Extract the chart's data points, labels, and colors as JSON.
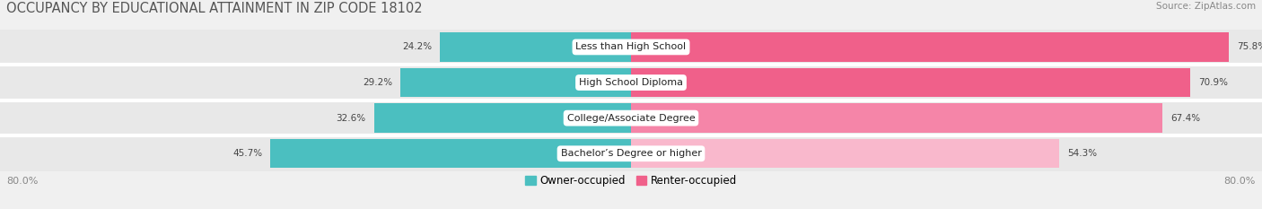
{
  "title": "OCCUPANCY BY EDUCATIONAL ATTAINMENT IN ZIP CODE 18102",
  "source": "Source: ZipAtlas.com",
  "categories": [
    "Less than High School",
    "High School Diploma",
    "College/Associate Degree",
    "Bachelor’s Degree or higher"
  ],
  "owner_values": [
    24.2,
    29.2,
    32.6,
    45.7
  ],
  "renter_values": [
    75.8,
    70.9,
    67.4,
    54.3
  ],
  "owner_color": "#4bbfc0",
  "renter_colors": [
    "#f0608a",
    "#f0608a",
    "#f585a8",
    "#f9b8cc"
  ],
  "bar_height": 0.82,
  "xlim": [
    -80,
    80
  ],
  "background_color": "#f0f0f0",
  "row_bg_color": "#e8e8e8",
  "sep_color": "#ffffff",
  "title_fontsize": 10.5,
  "source_fontsize": 7.5,
  "label_fontsize": 7.5,
  "category_fontsize": 8,
  "tick_fontsize": 8
}
